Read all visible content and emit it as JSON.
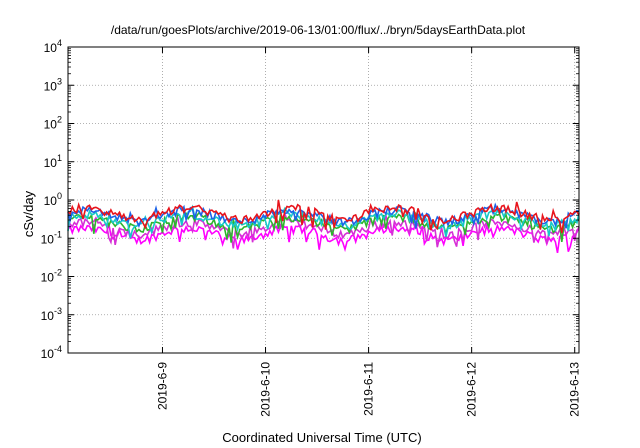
{
  "chart_data": {
    "type": "line",
    "title": "/data/run/goesPlots/archive/2019-06-13/01:00/flux/../bryn/5daysEarthData.plot",
    "xlabel": "Coordinated Universal Time (UTC)",
    "ylabel": "cSv/day",
    "yscale": "log",
    "ylim": [
      0.0001,
      10000
    ],
    "xlim": [
      "2019-06-08T02:00",
      "2019-06-13T01:00"
    ],
    "x_ticks": [
      "2019-6-9",
      "2019-6-10",
      "2019-6-11",
      "2019-6-12",
      "2019-6-13"
    ],
    "y_ticks": [
      {
        "base": "10",
        "exp": "-4"
      },
      {
        "base": "10",
        "exp": "-3"
      },
      {
        "base": "10",
        "exp": "-2"
      },
      {
        "base": "10",
        "exp": "-1"
      },
      {
        "base": "10",
        "exp": "0"
      },
      {
        "base": "10",
        "exp": "1"
      },
      {
        "base": "10",
        "exp": "2"
      },
      {
        "base": "10",
        "exp": "3"
      },
      {
        "base": "10",
        "exp": "4"
      }
    ],
    "grid": true,
    "legend": "none",
    "series_style": [
      {
        "color": "#e8141c",
        "level": 0.62
      },
      {
        "color": "#1c63e8",
        "level": 0.55
      },
      {
        "color": "#17c9c9",
        "level": 0.42
      },
      {
        "color": "#2db52d",
        "level": 0.36
      },
      {
        "color": "#d62fd6",
        "level": 0.26
      },
      {
        "color": "#ff00ff",
        "level": 0.18
      }
    ],
    "series_x_start": "2019-06-08T02:00",
    "series_step_hours": 0.5,
    "series": [
      {
        "values": [
          0.62,
          0.56,
          0.48,
          0.42,
          0.38,
          0.36,
          0.4,
          0.48,
          0.6,
          0.7,
          0.62,
          0.58
        ]
      },
      {
        "values": [
          0.54,
          0.5,
          0.42,
          0.36,
          0.32,
          0.3,
          0.34,
          0.42,
          0.52,
          0.6,
          0.54,
          0.5
        ]
      }
    ]
  }
}
